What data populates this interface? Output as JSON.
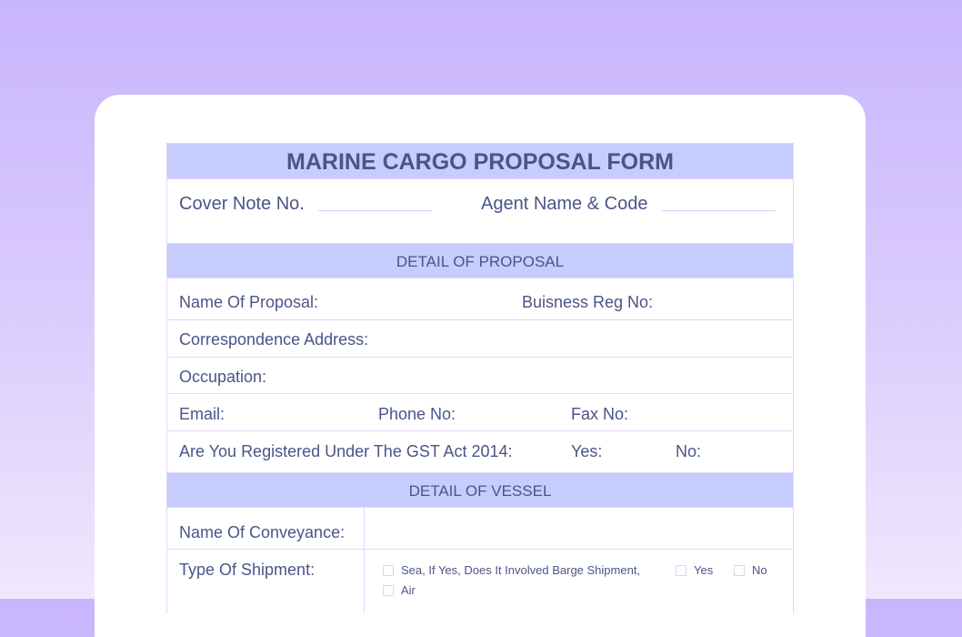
{
  "form": {
    "title": "MARINE CARGO PROPOSAL FORM",
    "cover_note_label": "Cover Note No.",
    "agent_label": "Agent Name & Code",
    "proposal_section": {
      "heading": "DETAIL OF PROPOSAL",
      "name_label": "Name Of Proposal:",
      "business_reg_label": "Buisness Reg No:",
      "address_label": "Correspondence Address:",
      "occupation_label": "Occupation:",
      "email_label": "Email:",
      "phone_label": "Phone No:",
      "fax_label": "Fax No:",
      "gst_label": "Are You Registered Under The GST Act 2014:",
      "gst_yes": "Yes:",
      "gst_no": "No:"
    },
    "vessel_section": {
      "heading": "DETAIL OF VESSEL",
      "conveyance_label": "Name Of Conveyance:",
      "shipment_label": "Type Of Shipment:",
      "options": {
        "sea": "Sea, If Yes, Does It Involved Barge Shipment,",
        "yes": "Yes",
        "no": "No",
        "air": "Air"
      }
    }
  }
}
